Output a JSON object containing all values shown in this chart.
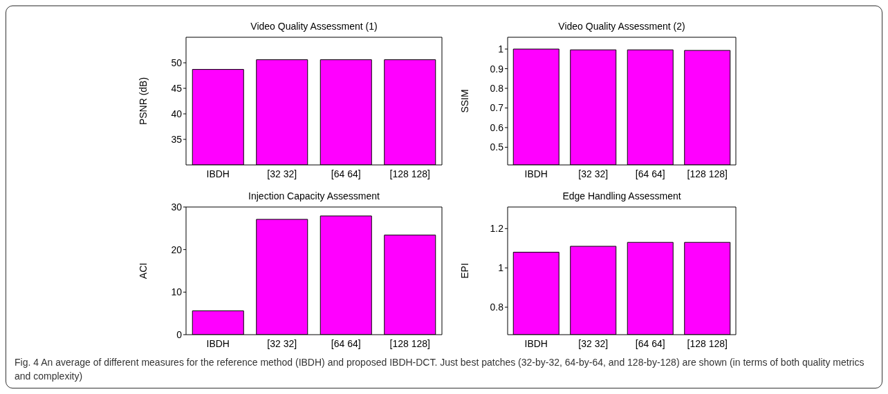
{
  "chart_data": [
    {
      "type": "bar",
      "title": "Video Quality Assessment (1)",
      "ylabel": "PSNR (dB)",
      "categories": [
        "IBDH",
        "[32 32]",
        "[64 64]",
        "[128 128]"
      ],
      "values": [
        48.7,
        50.6,
        50.6,
        50.6
      ],
      "color": "#ff00ff",
      "ylim": [
        30,
        55
      ],
      "yticks": [
        35,
        40,
        45,
        50
      ],
      "grid": false
    },
    {
      "type": "bar",
      "title": "Video Quality Assessment (2)",
      "ylabel": "SSIM",
      "categories": [
        "IBDH",
        "[32 32]",
        "[64 64]",
        "[128 128]"
      ],
      "values": [
        1.0,
        0.996,
        0.996,
        0.993
      ],
      "color": "#ff00ff",
      "ylim": [
        0.41,
        1.06
      ],
      "yticks": [
        0.5,
        0.6,
        0.7,
        0.8,
        0.9,
        1
      ],
      "grid": false
    },
    {
      "type": "bar",
      "title": "Injection Capacity Assessment",
      "ylabel": "ACI",
      "categories": [
        "IBDH",
        "[32 32]",
        "[64 64]",
        "[128 128]"
      ],
      "values": [
        5.6,
        27.1,
        27.9,
        23.4
      ],
      "color": "#ff00ff",
      "ylim": [
        0,
        30
      ],
      "yticks": [
        0,
        10,
        20,
        30
      ],
      "grid": false
    },
    {
      "type": "bar",
      "title": "Edge Handling Assessment",
      "ylabel": "EPI",
      "categories": [
        "IBDH",
        "[32 32]",
        "[64 64]",
        "[128 128]"
      ],
      "values": [
        1.08,
        1.11,
        1.13,
        1.13
      ],
      "color": "#ff00ff",
      "ylim": [
        0.66,
        1.31
      ],
      "yticks": [
        0.8,
        1,
        1.2
      ],
      "grid": false,
      "annotations": [
        "Fig. 4 An average of different measures for the reference method (IBDH) and proposed IBDH-DCT. Just best patches (32-by-32, 64-by-64, and 128-by-128) are shown (in terms of both quality metrics and complexity)"
      ]
    }
  ]
}
